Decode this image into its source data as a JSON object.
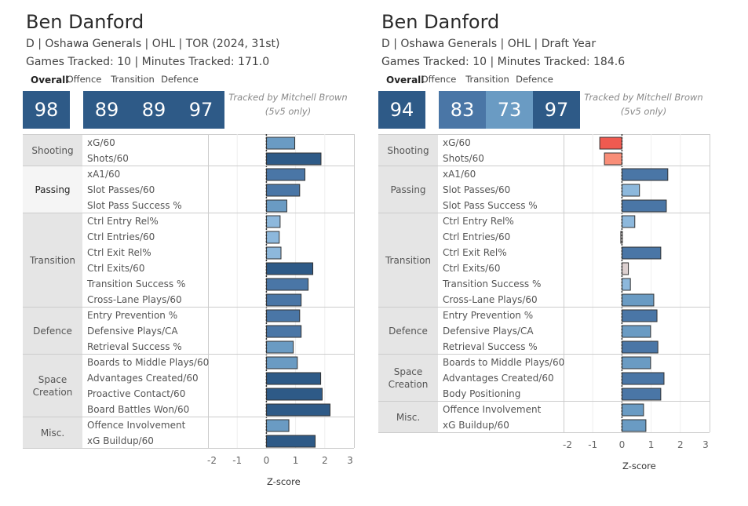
{
  "chart_data": [
    {
      "type": "bar",
      "orientation": "horizontal",
      "title": "Ben Danford",
      "subtitle": "D | Oshawa Generals | OHL | TOR (2024, 31st)",
      "games_line": "Games Tracked: 10 | Minutes Tracked: 171.0",
      "scores": {
        "overall_label": "Overall",
        "overall": 98,
        "components": [
          {
            "label": "Offence",
            "value": 89
          },
          {
            "label": "Transition",
            "value": 89
          },
          {
            "label": "Defence",
            "value": 97
          }
        ]
      },
      "tracked_note": [
        "Tracked by Mitchell Brown",
        "(5v5 only)"
      ],
      "xlabel": "Z-score",
      "xlim": [
        -2,
        3
      ],
      "xticks": [
        "-2",
        "-1",
        "0",
        "1",
        "2",
        "3"
      ],
      "grid": true,
      "groups": [
        {
          "name": "Shooting",
          "lines": [
            "Shooting"
          ],
          "highlight": false,
          "metrics": [
            {
              "label": "xG/60",
              "value": 0.97
            },
            {
              "label": "Shots/60",
              "value": 1.87
            }
          ]
        },
        {
          "name": "Passing",
          "lines": [
            "Passing"
          ],
          "highlight": true,
          "metrics": [
            {
              "label": "xA1/60",
              "value": 1.32
            },
            {
              "label": "Slot Passes/60",
              "value": 1.14
            },
            {
              "label": "Slot Pass Success %",
              "value": 0.7
            }
          ]
        },
        {
          "name": "Transition",
          "lines": [
            "Transition"
          ],
          "highlight": false,
          "metrics": [
            {
              "label": "Ctrl Entry Rel%",
              "value": 0.47
            },
            {
              "label": "Ctrl Entries/60",
              "value": 0.44
            },
            {
              "label": "Ctrl Exit Rel%",
              "value": 0.5
            },
            {
              "label": "Ctrl Exits/60",
              "value": 1.59
            },
            {
              "label": "Transition Success %",
              "value": 1.43
            },
            {
              "label": "Cross-Lane Plays/60",
              "value": 1.19
            }
          ]
        },
        {
          "name": "Defence",
          "lines": [
            "Defence"
          ],
          "highlight": false,
          "metrics": [
            {
              "label": "Entry Prevention %",
              "value": 1.14
            },
            {
              "label": "Defensive Plays/CA",
              "value": 1.19
            },
            {
              "label": "Retrieval Success %",
              "value": 0.92
            }
          ]
        },
        {
          "name": "Space Creation",
          "lines": [
            "Space",
            "Creation"
          ],
          "highlight": false,
          "metrics": [
            {
              "label": "Boards to Middle Plays/60",
              "value": 1.06
            },
            {
              "label": "Advantages Created/60",
              "value": 1.86
            },
            {
              "label": "Proactive Contact/60",
              "value": 1.91
            },
            {
              "label": "Board Battles Won/60",
              "value": 2.18
            }
          ]
        },
        {
          "name": "Misc.",
          "lines": [
            "Misc."
          ],
          "highlight": false,
          "metrics": [
            {
              "label": "Offence Involvement",
              "value": 0.77
            },
            {
              "label": "xG Buildup/60",
              "value": 1.67
            }
          ]
        }
      ]
    },
    {
      "type": "bar",
      "orientation": "horizontal",
      "title": "Ben Danford",
      "subtitle": "D | Oshawa Generals | OHL | Draft Year",
      "games_line": "Games Tracked: 10 | Minutes Tracked: 184.6",
      "scores": {
        "overall_label": "Overall",
        "overall": 94,
        "components": [
          {
            "label": "Offence",
            "value": 83
          },
          {
            "label": "Transition",
            "value": 73
          },
          {
            "label": "Defence",
            "value": 97
          }
        ]
      },
      "tracked_note": [
        "Tracked by Mitchell Brown",
        "(5v5 only)"
      ],
      "xlabel": "Z-score",
      "xlim": [
        -2,
        3
      ],
      "xticks": [
        "-2",
        "-1",
        "0",
        "1",
        "2",
        "3"
      ],
      "grid": true,
      "groups": [
        {
          "name": "Shooting",
          "lines": [
            "Shooting"
          ],
          "highlight": false,
          "metrics": [
            {
              "label": "xG/60",
              "value": -0.76
            },
            {
              "label": "Shots/60",
              "value": -0.6
            }
          ]
        },
        {
          "name": "Passing",
          "lines": [
            "Passing"
          ],
          "highlight": false,
          "metrics": [
            {
              "label": "xA1/60",
              "value": 1.57
            },
            {
              "label": "Slot Passes/60",
              "value": 0.6
            },
            {
              "label": "Slot Pass Success %",
              "value": 1.52
            }
          ]
        },
        {
          "name": "Transition",
          "lines": [
            "Transition"
          ],
          "highlight": false,
          "metrics": [
            {
              "label": "Ctrl Entry Rel%",
              "value": 0.44
            },
            {
              "label": "Ctrl Entries/60",
              "value": -0.04
            },
            {
              "label": "Ctrl Exit Rel%",
              "value": 1.33
            },
            {
              "label": "Ctrl Exits/60",
              "value": 0.22
            },
            {
              "label": "Transition Success %",
              "value": 0.29
            },
            {
              "label": "Cross-Lane Plays/60",
              "value": 1.09
            }
          ]
        },
        {
          "name": "Defence",
          "lines": [
            "Defence"
          ],
          "highlight": false,
          "metrics": [
            {
              "label": "Entry Prevention %",
              "value": 1.2
            },
            {
              "label": "Defensive Plays/CA",
              "value": 0.98
            },
            {
              "label": "Retrieval Success %",
              "value": 1.23
            }
          ]
        },
        {
          "name": "Space Creation",
          "lines": [
            "Space",
            "Creation"
          ],
          "highlight": false,
          "metrics": [
            {
              "label": "Boards to Middle Plays/60",
              "value": 0.98
            },
            {
              "label": "Advantages Created/60",
              "value": 1.44
            },
            {
              "label": "Body Positioning",
              "value": 1.33
            }
          ]
        },
        {
          "name": "Misc.",
          "lines": [
            "Misc."
          ],
          "highlight": false,
          "metrics": [
            {
              "label": "Offence Involvement",
              "value": 0.74
            },
            {
              "label": "xG Buildup/60",
              "value": 0.82
            }
          ]
        }
      ]
    }
  ],
  "colors": {
    "score_dark": "#2e5a87",
    "score_mid": "#4a76a6",
    "score_light": "#6a9bc3",
    "bar_dark": "#2e5a87",
    "bar_mid": "#4a76a6",
    "bar_light": "#6a9bc3",
    "bar_lightest": "#8db8dc",
    "bar_neutral": "#dcd0d0",
    "bar_neg_light": "#f98e78",
    "bar_neg": "#ef5a50"
  }
}
